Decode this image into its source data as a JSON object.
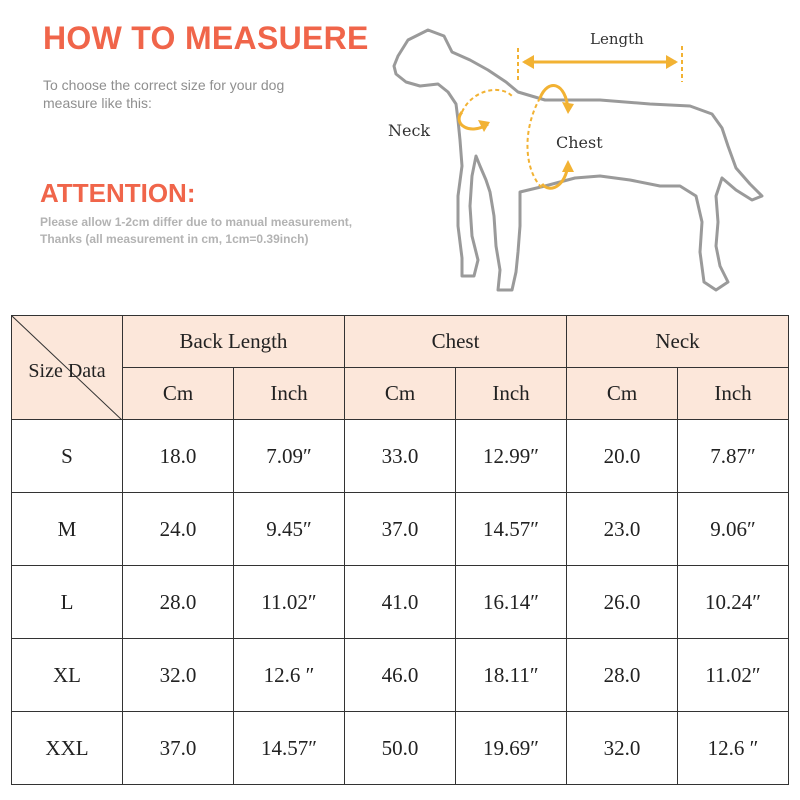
{
  "header": {
    "title": "HOW TO MEASUERE",
    "intro_lines": [
      "To choose the correct size for your dog",
      "measure like this:"
    ]
  },
  "attention": {
    "title": "ATTENTION:",
    "note_lines": [
      "Please allow 1-2cm differ due to manual measurement,",
      "Thanks (all measurement in cm, 1cm=0.39inch)"
    ]
  },
  "diagram": {
    "length_label": "Length",
    "neck_label": "Neck",
    "chest_label": "Chest",
    "arrow_color": "#f2b233",
    "outline_color": "#9a9a9a"
  },
  "table": {
    "corner_label": "Size Data",
    "groups": [
      "Back Length",
      "Chest",
      "Neck"
    ],
    "units": [
      "Cm",
      "Inch",
      "Cm",
      "Inch",
      "Cm",
      "Inch"
    ],
    "rows": [
      {
        "size": "S",
        "cells": [
          "18.0",
          "7.09″",
          "33.0",
          "12.99″",
          "20.0",
          "7.87″"
        ]
      },
      {
        "size": "M",
        "cells": [
          "24.0",
          "9.45″",
          "37.0",
          "14.57″",
          "23.0",
          "9.06″"
        ]
      },
      {
        "size": "L",
        "cells": [
          "28.0",
          "11.02″",
          "41.0",
          "16.14″",
          "26.0",
          "10.24″"
        ]
      },
      {
        "size": "XL",
        "cells": [
          "32.0",
          "12.6 ″",
          "46.0",
          "18.11″",
          "28.0",
          "11.02″"
        ]
      },
      {
        "size": "XXL",
        "cells": [
          "37.0",
          "14.57″",
          "50.0",
          "19.69″",
          "32.0",
          "12.6 ″"
        ]
      }
    ]
  },
  "colors": {
    "heading": "#f0654a",
    "header_fill": "#fce7da",
    "grid": "#333333"
  }
}
